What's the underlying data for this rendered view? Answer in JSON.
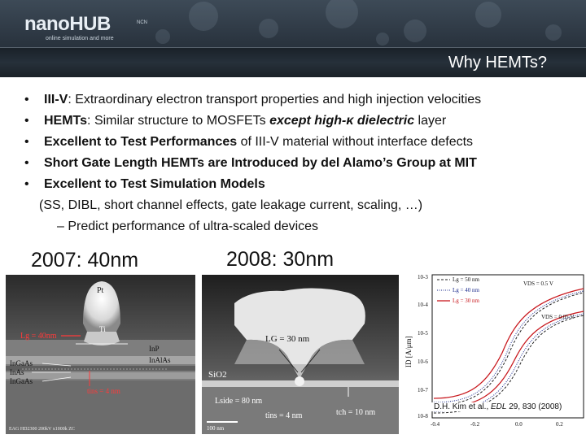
{
  "header": {
    "logo": "nanoHUB",
    "logo_tagline": "online simulation and more",
    "logo_partner": "NCN",
    "slide_title": "Why HEMTs?"
  },
  "bullets": [
    {
      "bold": "III-V",
      "rest": ": Extraordinary electron transport properties and high injection velocities"
    },
    {
      "bold": "HEMTs",
      "rest": ": Similar structure to MOSFETs ",
      "bold_italic": "except high-κ dielectric",
      "tail": " layer"
    },
    {
      "bold": "Excellent to Test Performances",
      "rest": " of III-V material without interface defects"
    },
    {
      "bold": "Short Gate Length HEMTs are Introduced by del Alamo’s Group at MIT",
      "rest": ""
    },
    {
      "bold": "Excellent to Test Simulation Models",
      "rest": ""
    }
  ],
  "sub_line": "(SS, DIBL, short channel effects, gate leakage current, scaling, …)",
  "dash_line": "–  Predict performance of ultra-scaled devices",
  "years": {
    "left": "2007: 40nm",
    "right": "2008: 30nm"
  },
  "left_image": {
    "label_pt": "Pt",
    "label_ti": "Ti",
    "label_lg": "Lg = 40nm",
    "label_inp": "InP",
    "label_inalas": "InAlAs",
    "label_layers": [
      "In0.7Ga0.3As",
      "InAs",
      "In0.7Ga0.3As"
    ],
    "label_layers_short": [
      "InGaAs",
      "InAs",
      "InGaAs"
    ],
    "label_tins": "tins = 4 nm",
    "footer": "EAG HD2300  200kV  x1000k  ZC"
  },
  "mid_image": {
    "label_lg": "LG = 30 nm",
    "label_sio2": "SiO2",
    "label_lside": "Lside = 80 nm",
    "label_tins": "tins = 4 nm",
    "label_tch": "tch = 10 nm",
    "scale": "100 nm"
  },
  "plot": {
    "legend": [
      "Lg = 50 nm",
      "Lg = 40 nm",
      "Lg = 30 nm"
    ],
    "vds_high": "VDS = 0.5 V",
    "vds_low": "VDS = 0.05 V",
    "ylabel": "ID [A/μm]",
    "yticks": [
      "10-3",
      "10-4",
      "10-5",
      "10-6",
      "10-7",
      "10-8"
    ],
    "xticks": [
      "-0.4",
      "-0.2",
      "0.0",
      "0.2"
    ],
    "colors": {
      "lg50": "#222222",
      "lg40": "#1a2a8c",
      "lg30": "#c8181e"
    }
  },
  "citation": {
    "prefix": "D.H. Kim et al., ",
    "journal": "EDL",
    "suffix": " 29, 830 (2008)"
  }
}
